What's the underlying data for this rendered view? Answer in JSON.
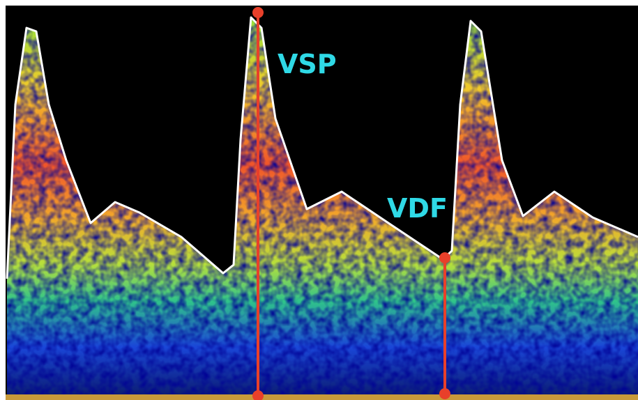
{
  "labels": {
    "vsp": "VSP",
    "vdf": "VDF"
  }
}
